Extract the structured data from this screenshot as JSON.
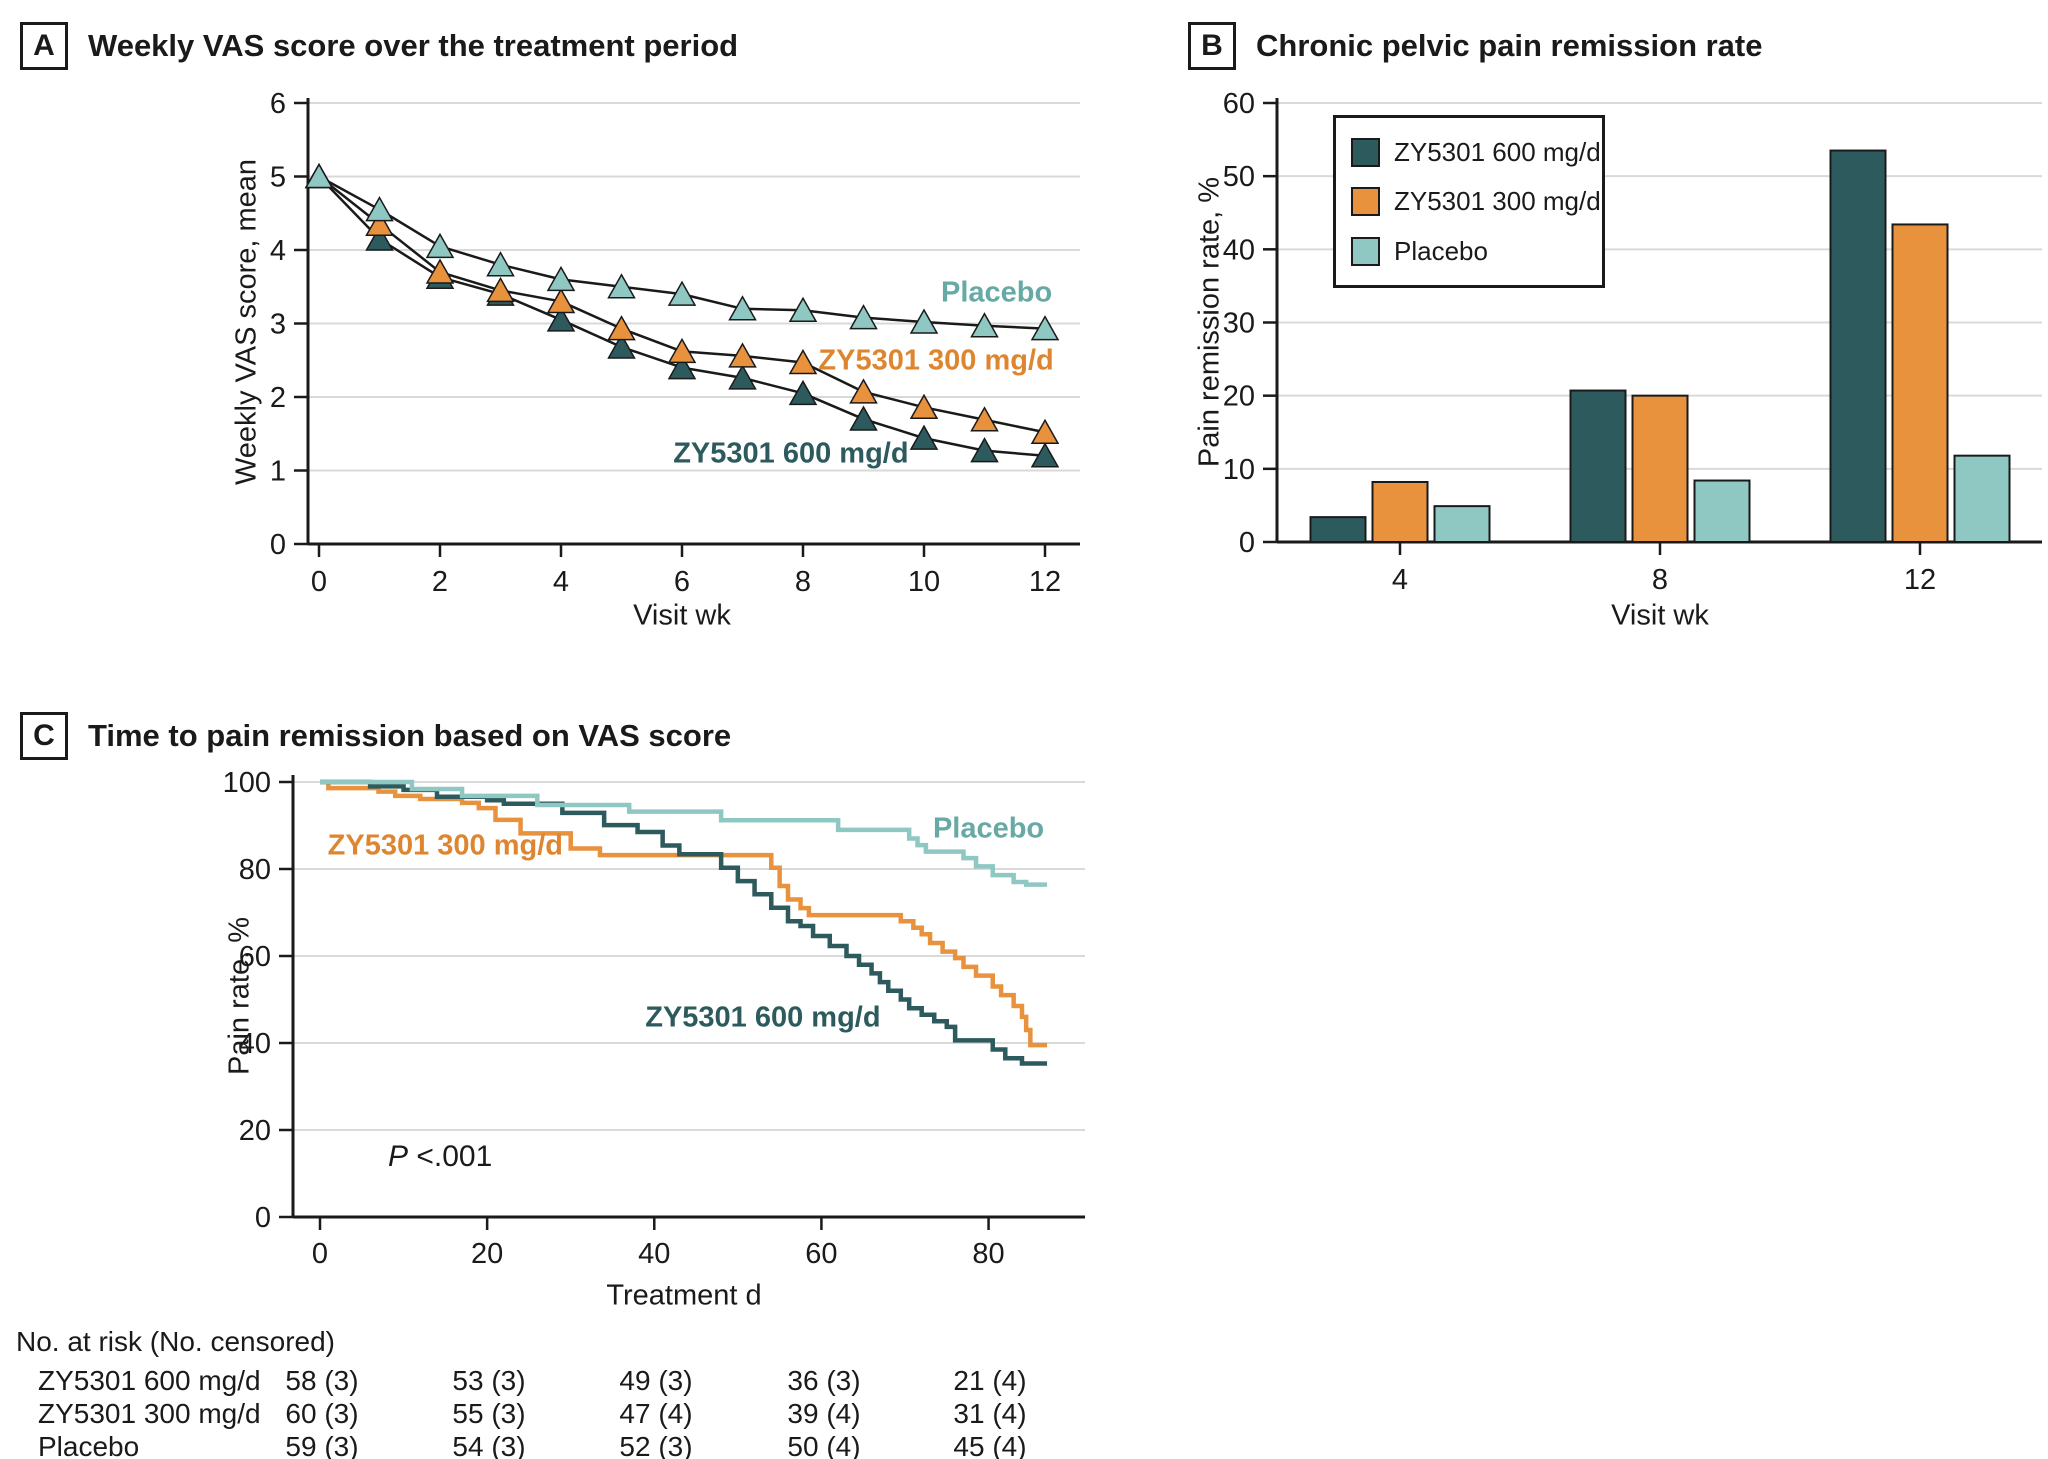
{
  "figure": {
    "panels": [
      {
        "letter": "A",
        "title": "Weekly VAS score over the treatment period"
      },
      {
        "letter": "B",
        "title": "Chronic pelvic pain remission rate"
      },
      {
        "letter": "C",
        "title": "Time to pain remission based on VAS score"
      }
    ]
  },
  "colors": {
    "zy600": "#2d5a5c",
    "zy300": "#e8923e",
    "placebo": "#8fc7c3",
    "zy300_label": "#de862f",
    "placebo_label": "#66a9a5",
    "axis": "#1a1a1a",
    "grid": "#d9d9d9",
    "background": "#ffffff"
  },
  "chart_data": [
    {
      "panel": "A",
      "type": "line",
      "title": "Weekly VAS score over the treatment period",
      "xlabel": "Visit wk",
      "ylabel": "Weekly VAS score, mean",
      "x": [
        0,
        1,
        2,
        3,
        4,
        5,
        6,
        7,
        8,
        9,
        10,
        11,
        12
      ],
      "xticks": [
        0,
        2,
        4,
        6,
        8,
        10,
        12
      ],
      "ylim": [
        0,
        6
      ],
      "yticks": [
        0,
        1,
        2,
        3,
        4,
        5,
        6
      ],
      "grid": true,
      "marker": "triangle-up",
      "line_color": "#1a1a1a",
      "series": [
        {
          "name": "ZY5301 600 mg/d",
          "color": "#2d5a5c",
          "values": [
            5.0,
            4.15,
            3.63,
            3.4,
            3.05,
            2.68,
            2.4,
            2.26,
            2.05,
            1.7,
            1.44,
            1.27,
            1.2
          ]
        },
        {
          "name": "ZY5301 300 mg/d",
          "color": "#e8923e",
          "values": [
            5.0,
            4.35,
            3.7,
            3.45,
            3.3,
            2.93,
            2.62,
            2.56,
            2.47,
            2.07,
            1.86,
            1.69,
            1.52
          ]
        },
        {
          "name": "Placebo",
          "color": "#8fc7c3",
          "values": [
            5.0,
            4.55,
            4.05,
            3.8,
            3.6,
            3.5,
            3.4,
            3.2,
            3.18,
            3.08,
            3.02,
            2.97,
            2.93
          ]
        }
      ],
      "annotations": [
        {
          "text": "Placebo",
          "x": 11.2,
          "y": 3.42,
          "color": "#66a9a5"
        },
        {
          "text": "ZY5301 300 mg/d",
          "x": 10.2,
          "y": 2.49,
          "color": "#de862f"
        },
        {
          "text": "ZY5301 600 mg/d",
          "x": 7.8,
          "y": 1.22,
          "color": "#2d5a5c"
        }
      ]
    },
    {
      "panel": "B",
      "type": "bar",
      "title": "Chronic pelvic pain remission rate",
      "xlabel": "Visit wk",
      "ylabel": "Pain remission rate, %",
      "categories": [
        "4",
        "8",
        "12"
      ],
      "ylim": [
        0,
        60
      ],
      "yticks": [
        0,
        10,
        20,
        30,
        40,
        50,
        60
      ],
      "grid": true,
      "legend_position": "upper-left",
      "series": [
        {
          "name": "ZY5301 600 mg/d",
          "color": "#2d5a5c",
          "values": [
            3.4,
            20.7,
            53.5
          ]
        },
        {
          "name": "ZY5301 300 mg/d",
          "color": "#e8923e",
          "values": [
            8.2,
            20.0,
            43.4
          ]
        },
        {
          "name": "Placebo",
          "color": "#8fc7c3",
          "values": [
            4.9,
            8.4,
            11.8
          ]
        }
      ]
    },
    {
      "panel": "C",
      "type": "step",
      "title": "Time to pain remission based on VAS score",
      "xlabel": "Treatment d",
      "ylabel": "Pain rate, %",
      "xlim": [
        0,
        88
      ],
      "xticks": [
        0,
        20,
        40,
        60,
        80
      ],
      "ylim": [
        0,
        100
      ],
      "yticks": [
        0,
        20,
        40,
        60,
        80,
        100
      ],
      "grid": true,
      "p_prefix": "P",
      "p_rest": " <.001",
      "series": [
        {
          "name": "ZY5301 600 mg/d",
          "color": "#2d5a5c",
          "points": [
            [
              0,
              100
            ],
            [
              6,
              99
            ],
            [
              10,
              98.2
            ],
            [
              14,
              96.6
            ],
            [
              20,
              95.8
            ],
            [
              22,
              95
            ],
            [
              29,
              92.9
            ],
            [
              34,
              90.1
            ],
            [
              38,
              88.5
            ],
            [
              41,
              85.4
            ],
            [
              43,
              83.4
            ],
            [
              48,
              80.3
            ],
            [
              50,
              77.2
            ],
            [
              52,
              74.2
            ],
            [
              54,
              71.1
            ],
            [
              56,
              68
            ],
            [
              57.5,
              66.9
            ],
            [
              59,
              64.6
            ],
            [
              61,
              62.3
            ],
            [
              63,
              60
            ],
            [
              64.5,
              58
            ],
            [
              66,
              56
            ],
            [
              67,
              54
            ],
            [
              68,
              52
            ],
            [
              69.5,
              50
            ],
            [
              70.5,
              48
            ],
            [
              72,
              46.5
            ],
            [
              73.5,
              45
            ],
            [
              75,
              43.7
            ],
            [
              76,
              40.6
            ],
            [
              80.5,
              38.5
            ],
            [
              82,
              36.5
            ],
            [
              84,
              35.3
            ],
            [
              87,
              35.3
            ]
          ]
        },
        {
          "name": "ZY5301 300 mg/d",
          "color": "#e8923e",
          "points": [
            [
              0,
              100
            ],
            [
              1,
              98.6
            ],
            [
              7,
              97.8
            ],
            [
              9,
              96.8
            ],
            [
              12,
              96.1
            ],
            [
              17,
              95.2
            ],
            [
              19,
              94
            ],
            [
              21,
              91.3
            ],
            [
              24,
              88.2
            ],
            [
              30,
              84.7
            ],
            [
              33.5,
              83.2
            ],
            [
              54,
              80.3
            ],
            [
              55,
              76.1
            ],
            [
              56,
              73
            ],
            [
              57.5,
              71
            ],
            [
              58.5,
              69.4
            ],
            [
              69.5,
              68
            ],
            [
              71,
              66.5
            ],
            [
              72,
              65
            ],
            [
              73,
              63
            ],
            [
              74.5,
              61
            ],
            [
              76,
              59.5
            ],
            [
              77,
              57.5
            ],
            [
              78.5,
              55.5
            ],
            [
              80.5,
              53
            ],
            [
              81.5,
              51
            ],
            [
              83,
              48.5
            ],
            [
              84,
              46
            ],
            [
              84.5,
              43
            ],
            [
              85,
              39.5
            ],
            [
              87,
              39.5
            ]
          ]
        },
        {
          "name": "Placebo",
          "color": "#8fc7c3",
          "points": [
            [
              0,
              100
            ],
            [
              11,
              98.4
            ],
            [
              17,
              96.8
            ],
            [
              26,
              94.7
            ],
            [
              37,
              93.2
            ],
            [
              48,
              91.2
            ],
            [
              62,
              89
            ],
            [
              70.5,
              87
            ],
            [
              71.5,
              85.5
            ],
            [
              72.5,
              84
            ],
            [
              77,
              82.5
            ],
            [
              78.5,
              80.6
            ],
            [
              80.5,
              78.6
            ],
            [
              83,
              77
            ],
            [
              84.5,
              76.4
            ],
            [
              87,
              76.4
            ]
          ]
        }
      ],
      "annotations": [
        {
          "text": "ZY5301 300 mg/d",
          "x": 15,
          "y": 85.3,
          "color": "#de862f"
        },
        {
          "text": "Placebo",
          "x": 80,
          "y": 89.2,
          "color": "#66a9a5"
        },
        {
          "text": "ZY5301 600 mg/d",
          "x": 53,
          "y": 45.7,
          "color": "#2d5a5c"
        }
      ]
    }
  ],
  "risk_table": {
    "header": "No. at risk (No. censored)",
    "time_points": [
      0,
      20,
      40,
      60,
      80
    ],
    "rows": [
      {
        "label": "ZY5301 600 mg/d",
        "values": [
          "58 (3)",
          "53 (3)",
          "49 (3)",
          "36 (3)",
          "21 (4)"
        ]
      },
      {
        "label": "ZY5301 300 mg/d",
        "values": [
          "60 (3)",
          "55 (3)",
          "47 (4)",
          "39 (4)",
          "31 (4)"
        ]
      },
      {
        "label": "Placebo",
        "values": [
          "59 (3)",
          "54 (3)",
          "52 (3)",
          "50 (4)",
          "45 (4)"
        ]
      }
    ]
  }
}
